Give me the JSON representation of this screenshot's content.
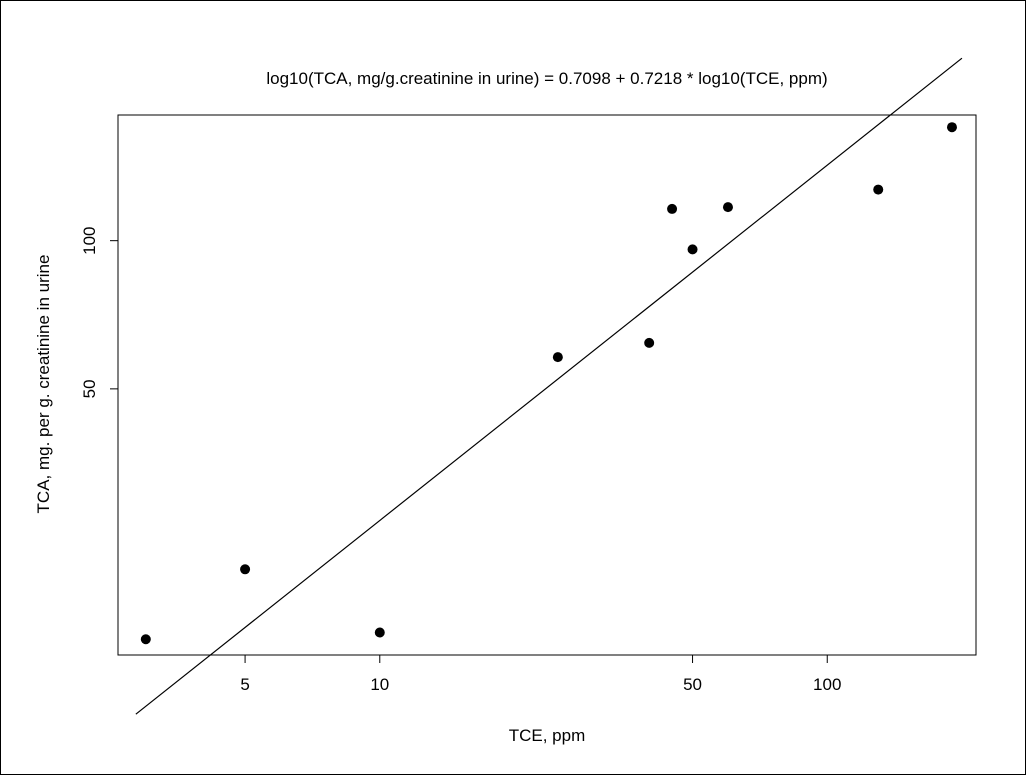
{
  "chart_data": {
    "type": "scatter",
    "title": "log10(TCA, mg/g.creatinine in urine) =  0.7098 + 0.7218 * log10(TCE, ppm)",
    "xlabel": "TCE, ppm",
    "ylabel": "TCA, mg. per g. creatinine in urine",
    "x_scale": "log",
    "y_scale": "log",
    "xlim": [
      2.6,
      215
    ],
    "ylim": [
      14.4,
      180
    ],
    "x_ticks": [
      5,
      10,
      50,
      100
    ],
    "x_tick_labels": [
      "5",
      "10",
      "50",
      "100"
    ],
    "y_ticks": [
      50,
      100
    ],
    "y_tick_labels": [
      "50",
      "100"
    ],
    "grid": false,
    "points": [
      {
        "x": 3,
        "y": 15.5
      },
      {
        "x": 5,
        "y": 21.5
      },
      {
        "x": 10,
        "y": 16
      },
      {
        "x": 25,
        "y": 58
      },
      {
        "x": 40,
        "y": 62
      },
      {
        "x": 45,
        "y": 116
      },
      {
        "x": 50,
        "y": 96
      },
      {
        "x": 60,
        "y": 117
      },
      {
        "x": 130,
        "y": 127
      },
      {
        "x": 190,
        "y": 170
      }
    ],
    "fit_line": {
      "intercept": 0.7098,
      "slope": 0.7218,
      "x_range": [
        2.85,
        200
      ]
    },
    "colors": {
      "points": "#000000",
      "line": "#000000",
      "axes": "#000000"
    }
  }
}
